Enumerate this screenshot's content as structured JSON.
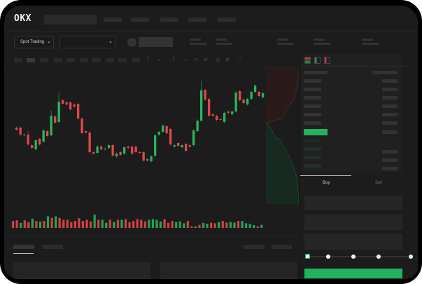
{
  "header": {
    "logo": "OKX",
    "nav_count": 5
  },
  "subheader": {
    "market_select": "Spot Trading",
    "market_select_icon": "chevron-down-icon",
    "pair_select_icon": "chevron-down-icon"
  },
  "order_book": {
    "view_icons": [
      "book-both-icon",
      "book-bids-icon",
      "book-asks-icon"
    ]
  },
  "trade_panel": {
    "tabs": [
      "Buy",
      "Sell"
    ],
    "active_tab": "Buy",
    "slider_stops": 5,
    "slider_value": 0
  },
  "colors": {
    "up": "#26b65e",
    "down": "#e0474c",
    "accent": "#22b35e"
  },
  "chart_data": {
    "type": "candlestick",
    "candles": [
      [
        118,
        115
      ],
      [
        118,
        108
      ],
      [
        107,
        108
      ],
      [
        108,
        94,
        113
      ],
      [
        93,
        89
      ],
      [
        87,
        100
      ],
      [
        102,
        94
      ],
      [
        98,
        114
      ],
      [
        113,
        106
      ],
      [
        107,
        135,
        143
      ],
      [
        134,
        125
      ],
      [
        126,
        155,
        167
      ],
      [
        157,
        152
      ],
      [
        154,
        151
      ],
      [
        154,
        144
      ],
      [
        151,
        148
      ],
      [
        152,
        131
      ],
      [
        131,
        110
      ],
      [
        113,
        111
      ],
      [
        111,
        83
      ],
      [
        83,
        81
      ],
      [
        82,
        91
      ],
      [
        91,
        87
      ],
      [
        87,
        88
      ],
      [
        89,
        93
      ],
      [
        93,
        78
      ],
      [
        77,
        81
      ],
      [
        83,
        79
      ],
      [
        81,
        90
      ],
      [
        91,
        89
      ],
      [
        91,
        81
      ],
      [
        91,
        83
      ],
      [
        83,
        82
      ],
      [
        83,
        71
      ],
      [
        73,
        71
      ],
      [
        70,
        77
      ],
      [
        78,
        107
      ],
      [
        108,
        112
      ],
      [
        112,
        121
      ],
      [
        120,
        110
      ],
      [
        116,
        94
      ],
      [
        91,
        93
      ],
      [
        96,
        92
      ],
      [
        90,
        93
      ],
      [
        95,
        85
      ],
      [
        93,
        91
      ],
      [
        93,
        114
      ],
      [
        113,
        128
      ],
      [
        128,
        171,
        185
      ],
      [
        172,
        158
      ],
      [
        159,
        135
      ],
      [
        137,
        135
      ],
      [
        135,
        129
      ],
      [
        130,
        129
      ],
      [
        126,
        139
      ],
      [
        141,
        139
      ],
      [
        137,
        141
      ],
      [
        141,
        168
      ],
      [
        170,
        157
      ],
      [
        158,
        153
      ],
      [
        151,
        159
      ],
      [
        159,
        169
      ],
      [
        169,
        178
      ],
      [
        169,
        163
      ],
      [
        161,
        167
      ]
    ],
    "volume": [
      [
        "d",
        30
      ],
      [
        "d",
        33
      ],
      [
        "u",
        22
      ],
      [
        "d",
        33
      ],
      [
        "d",
        25
      ],
      [
        "u",
        40
      ],
      [
        "d",
        30
      ],
      [
        "u",
        27
      ],
      [
        "d",
        30
      ],
      [
        "u",
        50
      ],
      [
        "d",
        43
      ],
      [
        "u",
        50
      ],
      [
        "d",
        43
      ],
      [
        "d",
        35
      ],
      [
        "d",
        35
      ],
      [
        "d",
        25
      ],
      [
        "d",
        30
      ],
      [
        "d",
        42
      ],
      [
        "d",
        30
      ],
      [
        "d",
        35
      ],
      [
        "d",
        28
      ],
      [
        "u",
        57
      ],
      [
        "d",
        35
      ],
      [
        "u",
        35
      ],
      [
        "u",
        22
      ],
      [
        "d",
        35
      ],
      [
        "u",
        25
      ],
      [
        "d",
        35
      ],
      [
        "u",
        35
      ],
      [
        "d",
        38
      ],
      [
        "d",
        25
      ],
      [
        "d",
        30
      ],
      [
        "d",
        38
      ],
      [
        "d",
        35
      ],
      [
        "d",
        28
      ],
      [
        "u",
        35
      ],
      [
        "u",
        38
      ],
      [
        "u",
        35
      ],
      [
        "u",
        28
      ],
      [
        "d",
        38
      ],
      [
        "d",
        22
      ],
      [
        "d",
        30
      ],
      [
        "u",
        25
      ],
      [
        "u",
        28
      ],
      [
        "u",
        20
      ],
      [
        "d",
        30
      ],
      [
        "d",
        7
      ],
      [
        "u",
        7
      ],
      [
        "d",
        13
      ],
      [
        "u",
        22
      ],
      [
        "u",
        18
      ],
      [
        "d",
        22
      ],
      [
        "d",
        20
      ],
      [
        "u",
        25
      ],
      [
        "d",
        30
      ],
      [
        "d",
        23
      ],
      [
        "u",
        25
      ],
      [
        "u",
        23
      ],
      [
        "d",
        30
      ],
      [
        "u",
        30
      ],
      [
        "u",
        20
      ],
      [
        "u",
        18
      ],
      [
        "u",
        12
      ],
      [
        "d",
        7
      ],
      [
        "u",
        13
      ]
    ]
  }
}
